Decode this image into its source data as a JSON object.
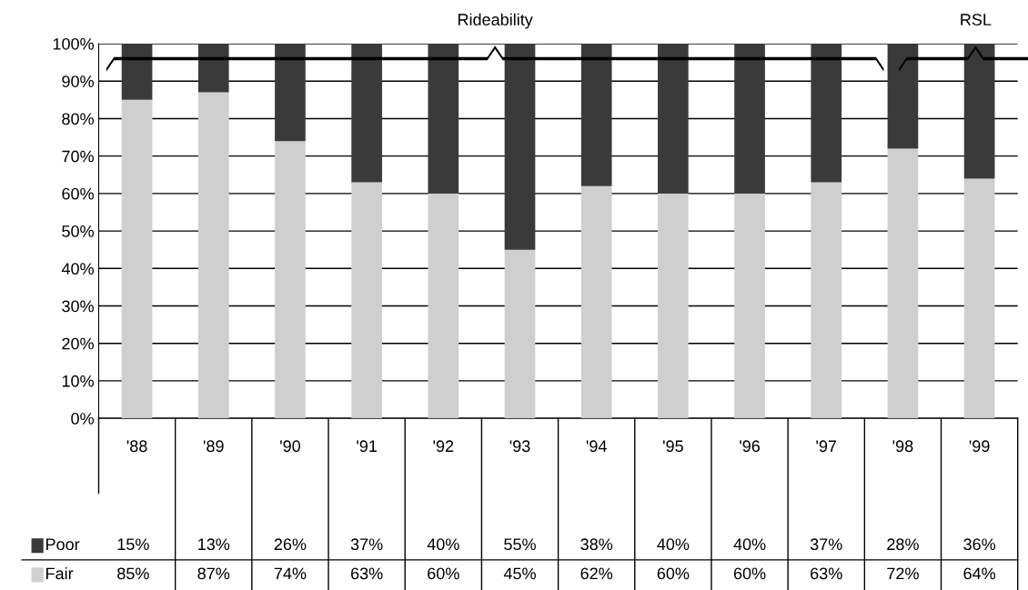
{
  "chart_data": {
    "type": "bar",
    "stacked": true,
    "categories": [
      "'88",
      "'89",
      "'90",
      "'91",
      "'92",
      "'93",
      "'94",
      "'95",
      "'96",
      "'97",
      "'98",
      "'99"
    ],
    "series": [
      {
        "name": "Fair",
        "color": "#cfcfcf",
        "values": [
          85,
          87,
          74,
          63,
          60,
          45,
          62,
          60,
          60,
          63,
          72,
          64
        ],
        "value_labels": [
          "85%",
          "87%",
          "74%",
          "63%",
          "60%",
          "45%",
          "62%",
          "60%",
          "60%",
          "63%",
          "72%",
          "64%"
        ]
      },
      {
        "name": "Poor",
        "color": "#3a3a3a",
        "values": [
          15,
          13,
          26,
          37,
          40,
          55,
          38,
          40,
          40,
          37,
          28,
          36
        ],
        "value_labels": [
          "15%",
          "13%",
          "26%",
          "37%",
          "40%",
          "55%",
          "38%",
          "40%",
          "40%",
          "37%",
          "28%",
          "36%"
        ]
      }
    ],
    "ylim": [
      0,
      100
    ],
    "yticks": [
      {
        "value": 0,
        "label": "0%"
      },
      {
        "value": 10,
        "label": "10%"
      },
      {
        "value": 20,
        "label": "20%"
      },
      {
        "value": 30,
        "label": "30%"
      },
      {
        "value": 40,
        "label": "40%"
      },
      {
        "value": 50,
        "label": "50%"
      },
      {
        "value": 60,
        "label": "60%"
      },
      {
        "value": 70,
        "label": "70%"
      },
      {
        "value": 80,
        "label": "80%"
      },
      {
        "value": 90,
        "label": "90%"
      },
      {
        "value": 100,
        "label": "100%"
      }
    ],
    "grid": "y",
    "legend": "bottom left",
    "annotations": [
      "Rideability",
      "RSL"
    ]
  }
}
